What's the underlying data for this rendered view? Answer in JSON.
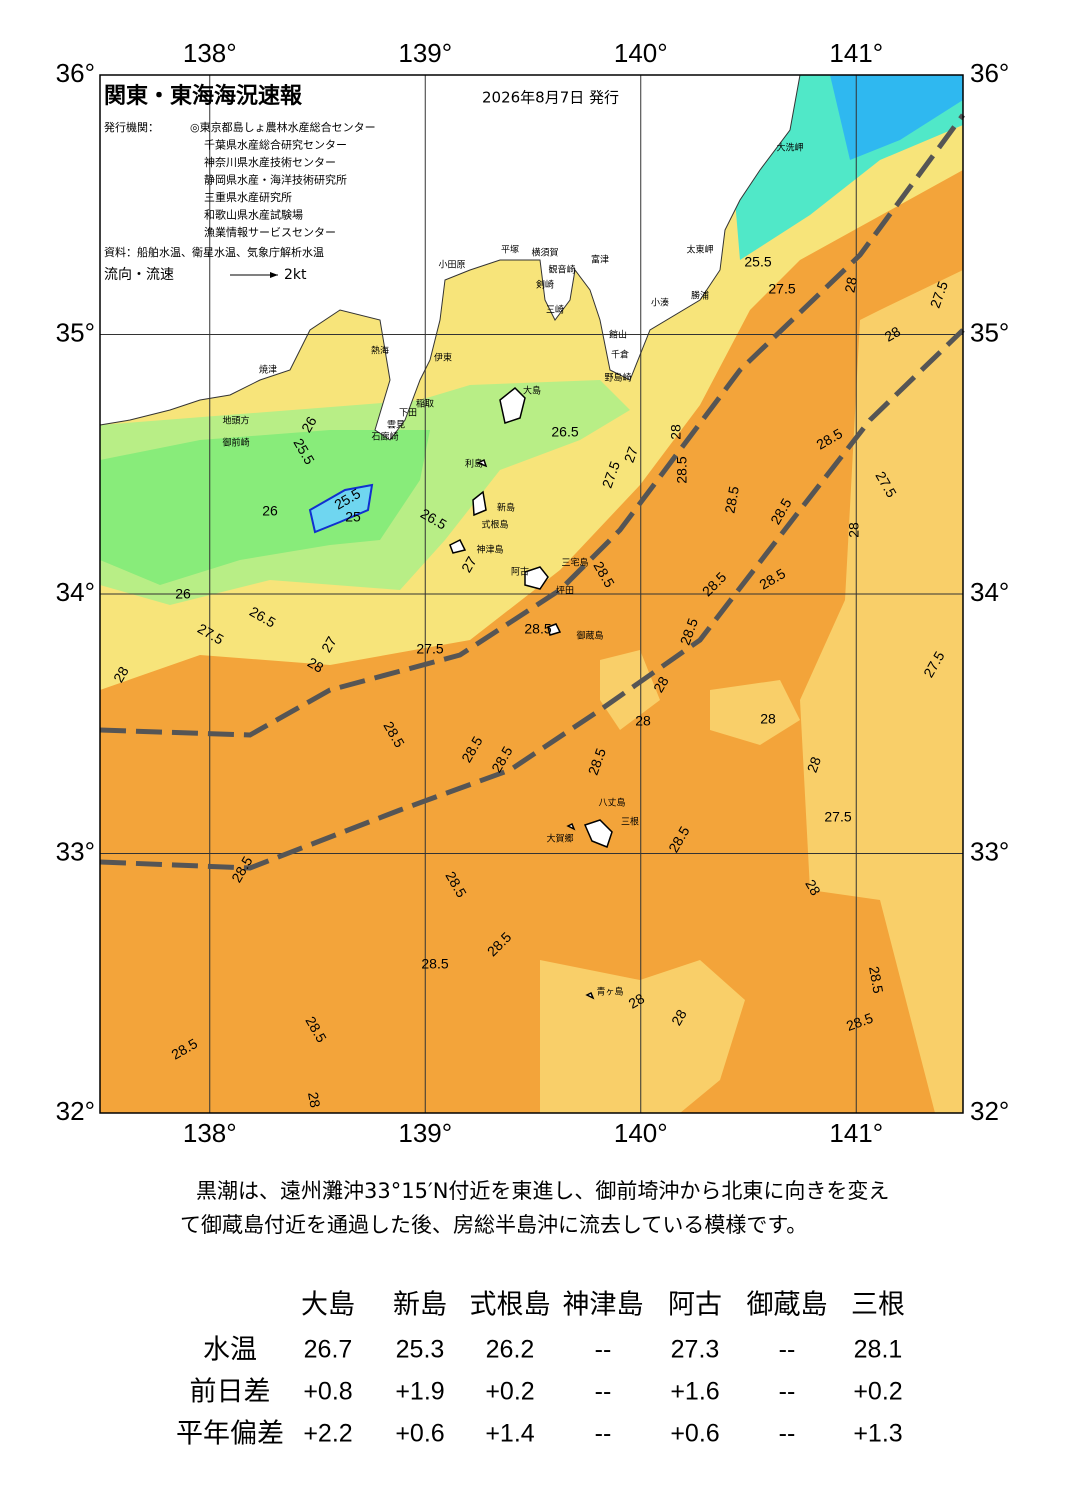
{
  "map": {
    "title": "関東・東海海況速報",
    "issue_date": "2026年8月7日 発行",
    "issuer_label": "発行機関：",
    "issuers": [
      "◎東京都島しょ農林水産総合センター",
      "千葉県水産総合研究センター",
      "神奈川県水産技術センター",
      "静岡県水産・海洋技術研究所",
      "三重県水産研究所",
      "和歌山県水産試験場",
      "漁業情報サービスセンター"
    ],
    "source": "資料：船舶水温、衛星水温、気象庁解析水温",
    "legend_label": "流向・流速",
    "legend_scale": "2kt",
    "lon_labels": [
      {
        "value": 138,
        "label": "138°"
      },
      {
        "value": 139,
        "label": "139°"
      },
      {
        "value": 140,
        "label": "140°"
      },
      {
        "value": 141,
        "label": "141°"
      }
    ],
    "lat_labels": [
      {
        "value": 36,
        "label": "36°"
      },
      {
        "value": 35,
        "label": "35°"
      },
      {
        "value": 34,
        "label": "34°"
      },
      {
        "value": 33,
        "label": "33°"
      },
      {
        "value": 32,
        "label": "32°"
      }
    ],
    "place_names": [
      "大洗岬",
      "太東岬",
      "勝浦",
      "小湊",
      "富津",
      "平塚",
      "横須賀",
      "観音崎",
      "剣崎",
      "小田原",
      "三崎",
      "館山",
      "千倉",
      "野島崎",
      "熱海",
      "伊東",
      "焼津",
      "大島",
      "稲取",
      "下田",
      "雲見",
      "石廊崎",
      "地頭方",
      "御前崎",
      "利島",
      "新島",
      "式根島",
      "神津島",
      "三宅島",
      "阿古",
      "坪田",
      "御蔵島",
      "八丈島",
      "三根",
      "大賀郷",
      "青ヶ島"
    ],
    "contour_labels": [
      28,
      26,
      27.5,
      26.5,
      26,
      25.5,
      26,
      25.5,
      25,
      26.5,
      27,
      27.5,
      28,
      27,
      26.5,
      27.5,
      27,
      28,
      28.5,
      28.5,
      28.5,
      28.5,
      28.5,
      28.5,
      28.5,
      28.5,
      28,
      28,
      28,
      28.5,
      28.5,
      28.5,
      28.5,
      28.5,
      28.5,
      28.5,
      28.5,
      28.5,
      28.5,
      28,
      28,
      28,
      28.5,
      28.5,
      27.5,
      28,
      28,
      27.5,
      27.5,
      28,
      28,
      27.5,
      28,
      28.5,
      28.5,
      27.5,
      25.5
    ]
  },
  "summary": [
    "黒潮は、遠州灘沖33°15′N付近を東進し、御前埼沖から北東に向きを変え",
    "て御蔵島付近を通過した後、房総半島沖に流去している模様です。"
  ],
  "table": {
    "columns": [
      "大島",
      "新島",
      "式根島",
      "神津島",
      "阿古",
      "御蔵島",
      "三根"
    ],
    "rows": [
      {
        "label": "水温",
        "values": [
          "26.7",
          "25.3",
          "26.2",
          "--",
          "27.3",
          "--",
          "28.1"
        ]
      },
      {
        "label": "前日差",
        "values": [
          "+0.8",
          "+1.9",
          "+0.2",
          "--",
          "+1.6",
          "--",
          "+0.2"
        ]
      },
      {
        "label": "平年偏差",
        "values": [
          "+2.2",
          "+0.6",
          "+1.4",
          "--",
          "+0.6",
          "--",
          "+1.3"
        ]
      }
    ]
  }
}
